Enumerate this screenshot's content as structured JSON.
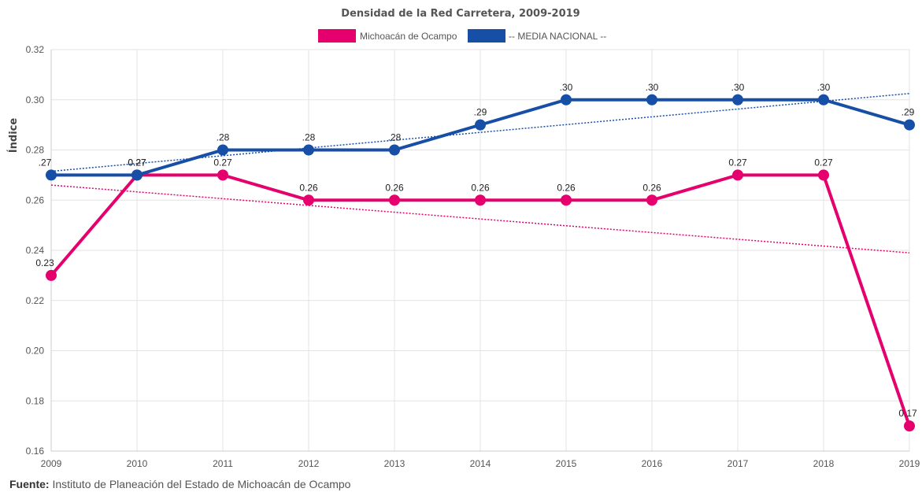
{
  "chart_data": {
    "type": "line",
    "title": "Densidad de la Red Carretera, 2009-2019",
    "ylabel": "Índice",
    "xlabel": "",
    "ylim": [
      0.16,
      0.32
    ],
    "yticks": [
      "0.16",
      "0.18",
      "0.20",
      "0.22",
      "0.24",
      "0.26",
      "0.28",
      "0.30",
      "0.32"
    ],
    "ytick_values": [
      0.16,
      0.18,
      0.2,
      0.22,
      0.24,
      0.26,
      0.28,
      0.3,
      0.32
    ],
    "categories": [
      "2009",
      "2010",
      "2011",
      "2012",
      "2013",
      "2014",
      "2015",
      "2016",
      "2017",
      "2018",
      "2019"
    ],
    "grid": true,
    "legend_position": "top-center",
    "series": [
      {
        "name": "Michoacán de Ocampo",
        "color": "#e5006d",
        "values": [
          0.23,
          0.27,
          0.27,
          0.26,
          0.26,
          0.26,
          0.26,
          0.26,
          0.27,
          0.27,
          0.17
        ],
        "labels": [
          "0.23",
          "0.27",
          "0.27",
          "0.26",
          "0.26",
          "0.26",
          "0.26",
          "0.26",
          "0.27",
          "0.27",
          "0.17"
        ],
        "trendline": [
          0.266,
          0.239
        ]
      },
      {
        "name": "-- MEDIA NACIONAL --",
        "color": "#174ea6",
        "values": [
          0.27,
          0.27,
          0.28,
          0.28,
          0.28,
          0.29,
          0.3,
          0.3,
          0.3,
          0.3,
          0.29
        ],
        "labels": [
          ".27",
          "0.27",
          ".28",
          ".28",
          ".28",
          ".29",
          ".30",
          ".30",
          ".30",
          ".30",
          ".29"
        ],
        "trendline": [
          0.2715,
          0.3025
        ]
      }
    ]
  },
  "footer": {
    "label": "Fuente:",
    "text": " Instituto de Planeación del Estado de Michoacán de Ocampo"
  }
}
